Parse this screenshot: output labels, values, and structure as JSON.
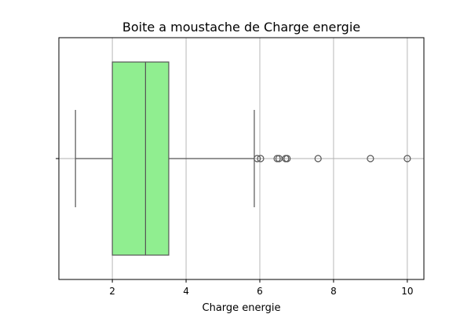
{
  "chart_data": {
    "type": "boxplot",
    "title": "Boite a moustache de Charge energie",
    "xlabel": "Charge energie",
    "ylabel": "",
    "xlim": [
      0.55,
      10.45
    ],
    "xticks": [
      2,
      4,
      6,
      8,
      10
    ],
    "grid": true,
    "box": {
      "whisker_low": 1.0,
      "q1": 2.0,
      "median": 2.9,
      "q3": 3.53,
      "whisker_high": 5.85
    },
    "outliers": [
      5.93,
      6.02,
      6.47,
      6.52,
      6.7,
      6.74,
      7.58,
      9.0,
      10.0
    ],
    "colors": {
      "box_fill": "#90ee90",
      "line": "#555555",
      "grid": "#b0b0b0"
    }
  }
}
